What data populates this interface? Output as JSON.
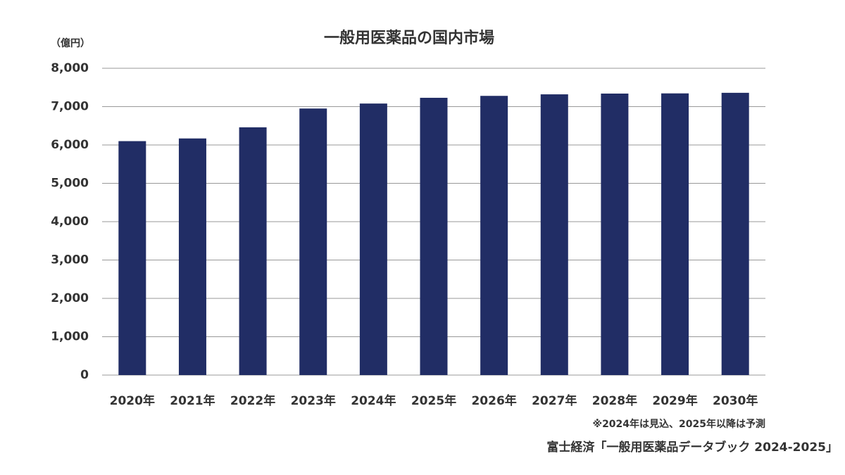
{
  "chart_data": {
    "type": "bar",
    "title": "一般用医薬品の国内市場",
    "y_label": "（億円）",
    "categories": [
      "2020年",
      "2021年",
      "2022年",
      "2023年",
      "2024年",
      "2025年",
      "2026年",
      "2027年",
      "2028年",
      "2029年",
      "2030年"
    ],
    "values": [
      6100,
      6170,
      6460,
      6950,
      7080,
      7230,
      7280,
      7320,
      7340,
      7345,
      7360
    ],
    "color": "#212d65",
    "ylim": [
      0,
      8000
    ],
    "yticks": [
      0,
      {
        "value": 1000,
        "label": "1,000"
      },
      {
        "value": 2000,
        "label": "2,000"
      },
      {
        "value": 3000,
        "label": "3,000"
      },
      {
        "value": 4000,
        "label": "4,000"
      },
      {
        "value": 5000,
        "label": "5,000"
      },
      {
        "value": 6000,
        "label": "6,000"
      },
      {
        "value": 7000,
        "label": "7,000"
      },
      {
        "value": 8000,
        "label": "8,000"
      }
    ],
    "grid": true,
    "note": "※2024年は見込、2025年以降は予測",
    "source": "富士経済「一般用医薬品データブック 2024-2025」"
  }
}
